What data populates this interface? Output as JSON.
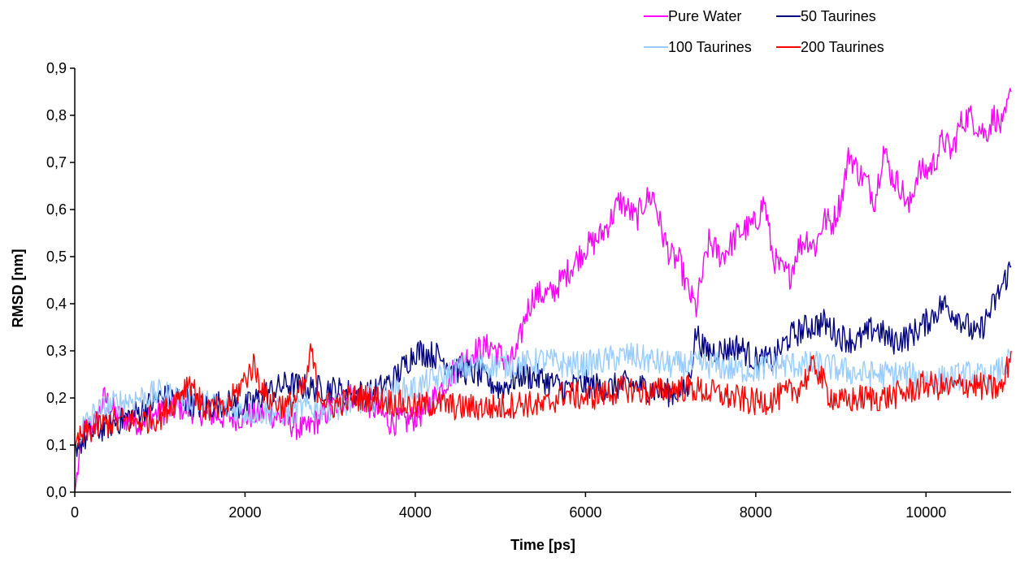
{
  "chart_data": {
    "type": "line",
    "title": "",
    "xlabel": "Time [ps]",
    "ylabel": "RMSD [nm]",
    "xlim": [
      0,
      11000
    ],
    "ylim": [
      0.0,
      0.9
    ],
    "x_ticks": [
      0,
      2000,
      4000,
      6000,
      8000,
      10000
    ],
    "x_tick_labels": [
      "0",
      "2000",
      "4000",
      "6000",
      "8000",
      "10000"
    ],
    "y_ticks": [
      0.0,
      0.1,
      0.2,
      0.3,
      0.4,
      0.5,
      0.6,
      0.7,
      0.8,
      0.9
    ],
    "y_tick_labels": [
      "0,0",
      "0,1",
      "0,2",
      "0,3",
      "0,4",
      "0,5",
      "0,6",
      "0,7",
      "0,8",
      "0,9"
    ],
    "grid": false,
    "legend_position": "top-right",
    "series": [
      {
        "name": "Pure Water",
        "color": "#ff00ff",
        "x": [
          0,
          100,
          250,
          350,
          500,
          750,
          1000,
          1250,
          1500,
          1750,
          2000,
          2250,
          2500,
          2700,
          2900,
          3100,
          3300,
          3500,
          3700,
          3900,
          4100,
          4300,
          4500,
          4700,
          4900,
          5100,
          5200,
          5300,
          5400,
          5600,
          5800,
          6000,
          6100,
          6200,
          6300,
          6400,
          6500,
          6600,
          6700,
          6800,
          6900,
          7000,
          7100,
          7200,
          7300,
          7350,
          7450,
          7600,
          7800,
          8000,
          8100,
          8200,
          8300,
          8400,
          8500,
          8600,
          8700,
          8800,
          8900,
          9000,
          9100,
          9200,
          9300,
          9400,
          9500,
          9600,
          9700,
          9800,
          9900,
          10000,
          10100,
          10200,
          10300,
          10400,
          10500,
          10600,
          10700,
          10800,
          10900,
          11000
        ],
        "y": [
          0.0,
          0.13,
          0.15,
          0.2,
          0.16,
          0.15,
          0.17,
          0.18,
          0.17,
          0.16,
          0.16,
          0.17,
          0.15,
          0.13,
          0.16,
          0.19,
          0.21,
          0.18,
          0.15,
          0.15,
          0.17,
          0.22,
          0.27,
          0.3,
          0.31,
          0.27,
          0.3,
          0.38,
          0.42,
          0.42,
          0.47,
          0.52,
          0.53,
          0.55,
          0.58,
          0.62,
          0.6,
          0.58,
          0.62,
          0.63,
          0.55,
          0.5,
          0.49,
          0.43,
          0.39,
          0.44,
          0.53,
          0.5,
          0.55,
          0.57,
          0.62,
          0.5,
          0.47,
          0.46,
          0.52,
          0.54,
          0.52,
          0.58,
          0.57,
          0.62,
          0.72,
          0.68,
          0.66,
          0.62,
          0.73,
          0.67,
          0.65,
          0.6,
          0.68,
          0.68,
          0.7,
          0.75,
          0.72,
          0.78,
          0.8,
          0.78,
          0.76,
          0.8,
          0.77,
          0.85
        ]
      },
      {
        "name": "50 Taurines",
        "color": "#00007f",
        "x": [
          0,
          100,
          250,
          500,
          750,
          1000,
          1250,
          1500,
          1750,
          2000,
          2250,
          2500,
          2750,
          3000,
          3250,
          3500,
          3750,
          4000,
          4250,
          4500,
          4750,
          5000,
          5250,
          5500,
          5750,
          6000,
          6250,
          6500,
          6750,
          7000,
          7200,
          7300,
          7400,
          7600,
          7800,
          8000,
          8200,
          8400,
          8600,
          8800,
          9000,
          9200,
          9400,
          9600,
          9800,
          10000,
          10200,
          10400,
          10600,
          10800,
          11000
        ],
        "y": [
          0.1,
          0.11,
          0.13,
          0.15,
          0.17,
          0.2,
          0.2,
          0.18,
          0.19,
          0.18,
          0.21,
          0.23,
          0.22,
          0.22,
          0.21,
          0.21,
          0.24,
          0.3,
          0.29,
          0.26,
          0.25,
          0.22,
          0.25,
          0.24,
          0.22,
          0.23,
          0.22,
          0.23,
          0.22,
          0.21,
          0.22,
          0.34,
          0.3,
          0.3,
          0.31,
          0.28,
          0.28,
          0.33,
          0.35,
          0.36,
          0.33,
          0.32,
          0.35,
          0.32,
          0.33,
          0.36,
          0.4,
          0.37,
          0.33,
          0.4,
          0.48
        ]
      },
      {
        "name": "100 Taurines",
        "color": "#99ccff",
        "x": [
          0,
          100,
          250,
          500,
          750,
          1000,
          1250,
          1500,
          1750,
          2000,
          2250,
          2500,
          2750,
          3000,
          3250,
          3500,
          3750,
          4000,
          4250,
          4500,
          4750,
          5000,
          5250,
          5500,
          5750,
          6000,
          6250,
          6500,
          6750,
          7000,
          7250,
          7500,
          7750,
          8000,
          8250,
          8500,
          8750,
          9000,
          9250,
          9500,
          9750,
          10000,
          10250,
          10500,
          10750,
          11000
        ],
        "y": [
          0.1,
          0.14,
          0.17,
          0.19,
          0.2,
          0.21,
          0.2,
          0.19,
          0.18,
          0.17,
          0.17,
          0.17,
          0.18,
          0.18,
          0.19,
          0.2,
          0.21,
          0.22,
          0.24,
          0.26,
          0.27,
          0.27,
          0.27,
          0.28,
          0.27,
          0.27,
          0.28,
          0.29,
          0.28,
          0.27,
          0.27,
          0.27,
          0.26,
          0.26,
          0.27,
          0.27,
          0.27,
          0.26,
          0.25,
          0.25,
          0.25,
          0.24,
          0.24,
          0.25,
          0.24,
          0.28
        ]
      },
      {
        "name": "200 Taurines",
        "color": "#ff0000",
        "x": [
          0,
          100,
          250,
          500,
          750,
          1000,
          1200,
          1350,
          1500,
          1750,
          2000,
          2100,
          2250,
          2500,
          2700,
          2780,
          2850,
          3000,
          3250,
          3500,
          3750,
          4000,
          4250,
          4500,
          4750,
          5000,
          5250,
          5500,
          5750,
          6000,
          6250,
          6500,
          6750,
          7000,
          7250,
          7500,
          7750,
          8000,
          8250,
          8500,
          8700,
          8850,
          9000,
          9250,
          9500,
          9750,
          10000,
          10250,
          10500,
          10750,
          10900,
          11000
        ],
        "y": [
          0.1,
          0.12,
          0.14,
          0.15,
          0.15,
          0.16,
          0.2,
          0.24,
          0.18,
          0.17,
          0.24,
          0.27,
          0.2,
          0.18,
          0.22,
          0.3,
          0.22,
          0.18,
          0.2,
          0.2,
          0.19,
          0.18,
          0.19,
          0.18,
          0.18,
          0.18,
          0.19,
          0.18,
          0.21,
          0.2,
          0.21,
          0.22,
          0.21,
          0.22,
          0.22,
          0.21,
          0.2,
          0.19,
          0.2,
          0.22,
          0.27,
          0.21,
          0.19,
          0.2,
          0.2,
          0.21,
          0.23,
          0.22,
          0.23,
          0.22,
          0.22,
          0.3
        ]
      }
    ]
  }
}
